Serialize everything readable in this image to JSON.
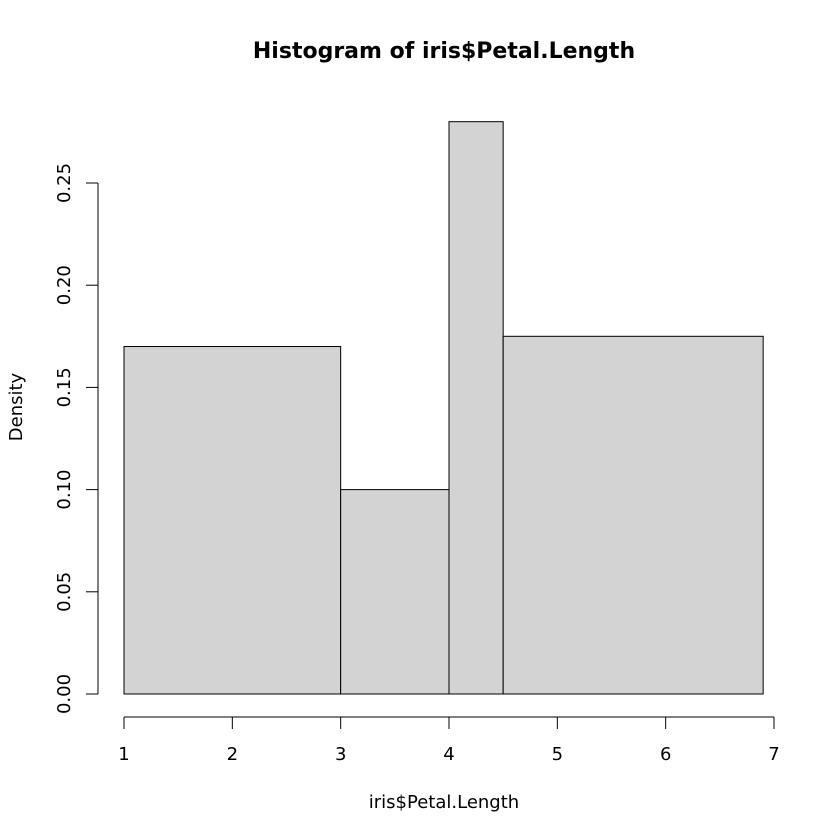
{
  "chart_data": {
    "type": "bar",
    "title": "Histogram of iris$Petal.Length",
    "xlabel": "iris$Petal.Length",
    "ylabel": "Density",
    "bins": [
      {
        "x0": 1,
        "x1": 3,
        "density": 0.17
      },
      {
        "x0": 3,
        "x1": 4,
        "density": 0.1
      },
      {
        "x0": 4,
        "x1": 4.5,
        "density": 0.28
      },
      {
        "x0": 4.5,
        "x1": 6.9,
        "density": 0.175
      }
    ],
    "xlim": [
      1,
      7
    ],
    "ylim": [
      0,
      0.25
    ],
    "xticks": [
      "1",
      "2",
      "3",
      "4",
      "5",
      "6",
      "7"
    ],
    "yticks": [
      "0.00",
      "0.05",
      "0.10",
      "0.15",
      "0.20",
      "0.25"
    ],
    "grid": false,
    "legend": "none",
    "bar_color": "#d3d3d3"
  }
}
